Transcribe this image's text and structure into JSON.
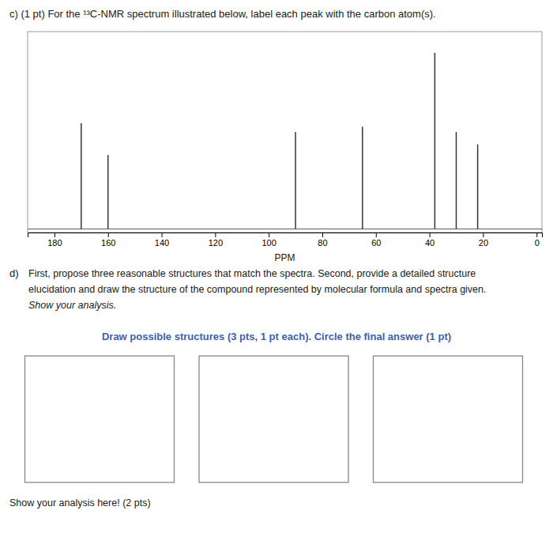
{
  "chart_data": {
    "type": "stem",
    "title": "c) (1 pt) For the ¹³C-NMR spectrum illustrated below, label each peak with the carbon atom(s).",
    "x_label": "PPM",
    "x": [
      170,
      160,
      90,
      65,
      38,
      30,
      22
    ],
    "values": [
      0.6,
      0.42,
      0.55,
      0.58,
      1.0,
      0.55,
      0.48
    ],
    "color": "#333333",
    "xlim": [
      190,
      -2
    ],
    "xticks": [
      180,
      160,
      140,
      120,
      100,
      80,
      60,
      40,
      20,
      0
    ],
    "ylim": [
      -0.02,
      1.12
    ],
    "tick_labels": "x",
    "grid": false,
    "subtitle": "Draw possible structures (3 pts, 1 pt each). Circle the final answer (1 pt)",
    "annotations": [
      "d)",
      "First, propose three reasonable structures that match the spectra. Second, provide a detailed structure",
      "elucidation and draw the structure of the compound represented by molecular formula and spectra given.",
      "Show your analysis.",
      "Show your analysis here! (2 pts)"
    ]
  }
}
